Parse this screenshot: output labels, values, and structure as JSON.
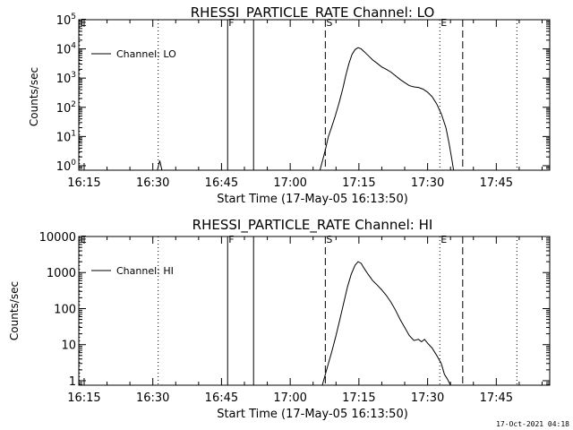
{
  "chart_data": [
    {
      "type": "line",
      "title": "RHESSI_PARTICLE_RATE Channel: LO",
      "xlabel": "Start Time (17-May-05 16:13:50)",
      "ylabel": "Counts/sec",
      "y_scale": "log",
      "xlim": [
        "16:13:50",
        "17:56:40"
      ],
      "ylim": [
        0.7,
        100000
      ],
      "xticks": [
        "16:15",
        "16:30",
        "16:45",
        "17:00",
        "17:15",
        "17:30",
        "17:45"
      ],
      "yticks": [
        {
          "value": 1,
          "label": "10^0"
        },
        {
          "value": 10,
          "label": "10^1"
        },
        {
          "value": 100,
          "label": "10^2"
        },
        {
          "value": 1000,
          "label": "10^3"
        },
        {
          "value": 10000,
          "label": "10^4"
        },
        {
          "value": 100000,
          "label": "10^5"
        }
      ],
      "legend": {
        "position": "top-left",
        "entries": [
          "Channel: LO"
        ]
      },
      "grid": false,
      "series": [
        {
          "name": "Channel: LO",
          "points": [
            [
              "16:31:00",
              0.7
            ],
            [
              "16:31:30",
              1.5
            ],
            [
              "16:32:00",
              0.7
            ],
            [
              "17:06:30",
              0.7
            ],
            [
              "17:07:00",
              1.4
            ],
            [
              "17:07:40",
              3.5
            ],
            [
              "17:08:20",
              10
            ],
            [
              "17:09:00",
              20
            ],
            [
              "17:09:50",
              50
            ],
            [
              "17:10:40",
              140
            ],
            [
              "17:11:30",
              450
            ],
            [
              "17:12:10",
              1300
            ],
            [
              "17:12:50",
              3200
            ],
            [
              "17:13:30",
              6500
            ],
            [
              "17:14:10",
              9500
            ],
            [
              "17:14:50",
              11000
            ],
            [
              "17:15:30",
              10000
            ],
            [
              "17:16:10",
              8000
            ],
            [
              "17:17:00",
              6000
            ],
            [
              "17:18:00",
              4200
            ],
            [
              "17:19:00",
              3200
            ],
            [
              "17:20:00",
              2400
            ],
            [
              "17:21:00",
              2000
            ],
            [
              "17:22:00",
              1600
            ],
            [
              "17:23:00",
              1200
            ],
            [
              "17:24:00",
              900
            ],
            [
              "17:25:00",
              700
            ],
            [
              "17:26:00",
              550
            ],
            [
              "17:27:00",
              500
            ],
            [
              "17:28:00",
              480
            ],
            [
              "17:29:00",
              420
            ],
            [
              "17:30:00",
              330
            ],
            [
              "17:31:00",
              230
            ],
            [
              "17:32:00",
              130
            ],
            [
              "17:33:00",
              60
            ],
            [
              "17:34:00",
              20
            ],
            [
              "17:34:40",
              6
            ],
            [
              "17:35:20",
              1.5
            ],
            [
              "17:35:40",
              0.7
            ]
          ]
        }
      ],
      "markers": [
        {
          "time": "16:14:00",
          "style": "dotted",
          "label": "E"
        },
        {
          "time": "16:31:10",
          "style": "dotted",
          "label": ""
        },
        {
          "time": "16:46:20",
          "style": "solid",
          "label": "F"
        },
        {
          "time": "16:52:00",
          "style": "solid",
          "label": ""
        },
        {
          "time": "17:07:40",
          "style": "dashed",
          "label": "S"
        },
        {
          "time": "17:32:40",
          "style": "dotted",
          "label": "E"
        },
        {
          "time": "17:37:40",
          "style": "dashed",
          "label": ""
        },
        {
          "time": "17:49:30",
          "style": "dotted",
          "label": ""
        }
      ]
    },
    {
      "type": "line",
      "title": "RHESSI_PARTICLE_RATE Channel: HI",
      "xlabel": "Start Time (17-May-05 16:13:50)",
      "ylabel": "Counts/sec",
      "y_scale": "log",
      "xlim": [
        "16:13:50",
        "17:56:40"
      ],
      "ylim": [
        0.75,
        10000
      ],
      "xticks": [
        "16:15",
        "16:30",
        "16:45",
        "17:00",
        "17:15",
        "17:30",
        "17:45"
      ],
      "yticks": [
        {
          "value": 1,
          "label": "1"
        },
        {
          "value": 10,
          "label": "10"
        },
        {
          "value": 100,
          "label": "100"
        },
        {
          "value": 1000,
          "label": "1000"
        },
        {
          "value": 10000,
          "label": "10000"
        }
      ],
      "legend": {
        "position": "top-left",
        "entries": [
          "Channel: HI"
        ]
      },
      "grid": false,
      "series": [
        {
          "name": "Channel: HI",
          "points": [
            [
              "17:07:00",
              0.75
            ],
            [
              "17:07:40",
              1.5
            ],
            [
              "17:08:20",
              3
            ],
            [
              "17:09:10",
              7
            ],
            [
              "17:10:00",
              18
            ],
            [
              "17:10:50",
              50
            ],
            [
              "17:11:40",
              140
            ],
            [
              "17:12:30",
              400
            ],
            [
              "17:13:20",
              900
            ],
            [
              "17:14:10",
              1600
            ],
            [
              "17:14:50",
              2000
            ],
            [
              "17:15:30",
              1800
            ],
            [
              "17:16:10",
              1300
            ],
            [
              "17:17:00",
              900
            ],
            [
              "17:18:00",
              600
            ],
            [
              "17:19:00",
              450
            ],
            [
              "17:20:00",
              330
            ],
            [
              "17:21:00",
              230
            ],
            [
              "17:22:00",
              150
            ],
            [
              "17:23:00",
              90
            ],
            [
              "17:24:00",
              50
            ],
            [
              "17:25:00",
              30
            ],
            [
              "17:26:00",
              18
            ],
            [
              "17:27:00",
              13
            ],
            [
              "17:28:00",
              14
            ],
            [
              "17:28:40",
              12
            ],
            [
              "17:29:20",
              14
            ],
            [
              "17:30:00",
              11
            ],
            [
              "17:31:00",
              8
            ],
            [
              "17:32:00",
              5
            ],
            [
              "17:33:00",
              3
            ],
            [
              "17:33:40",
              1.5
            ],
            [
              "17:34:20",
              1.1
            ],
            [
              "17:35:00",
              0.75
            ]
          ]
        }
      ],
      "markers": [
        {
          "time": "16:14:00",
          "style": "dotted",
          "label": "E"
        },
        {
          "time": "16:31:10",
          "style": "dotted",
          "label": ""
        },
        {
          "time": "16:46:20",
          "style": "solid",
          "label": "F"
        },
        {
          "time": "16:52:00",
          "style": "solid",
          "label": ""
        },
        {
          "time": "17:07:40",
          "style": "dashed",
          "label": "S"
        },
        {
          "time": "17:32:40",
          "style": "dotted",
          "label": "E"
        },
        {
          "time": "17:37:40",
          "style": "dashed",
          "label": ""
        },
        {
          "time": "17:49:30",
          "style": "dotted",
          "label": ""
        }
      ]
    }
  ],
  "footer": {
    "timestamp": "17-Oct-2021 04:18"
  }
}
